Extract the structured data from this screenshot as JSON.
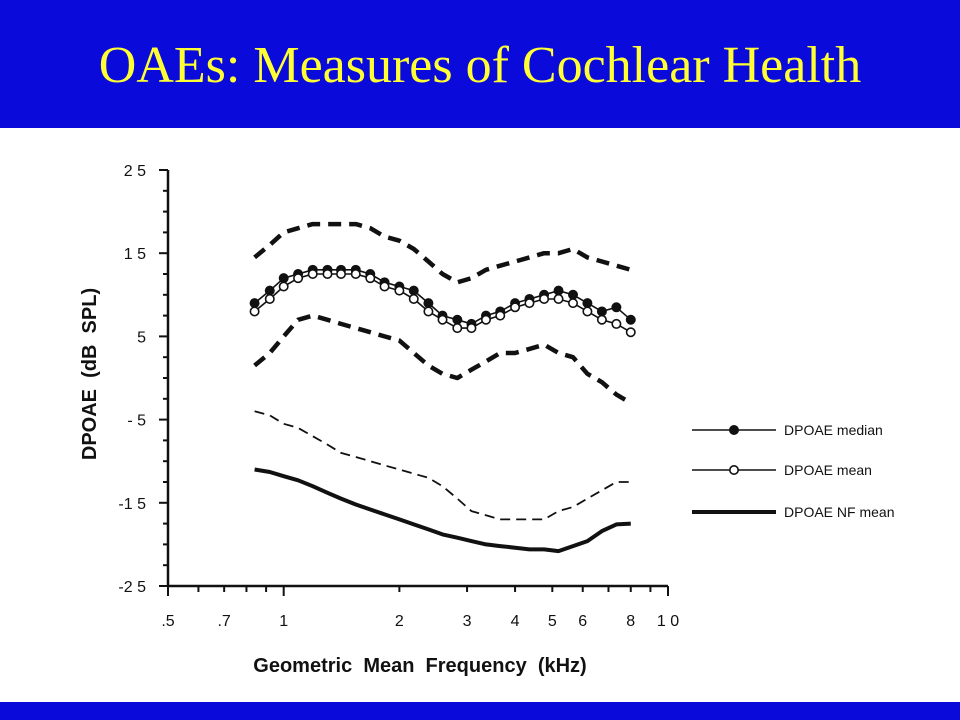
{
  "slide": {
    "title": "OAEs: Measures of Cochlear Health",
    "header_color": "#0a0adb",
    "title_color": "#ffff33"
  },
  "chart_data": {
    "type": "line",
    "title": "",
    "xlabel": "Geometric  Mean  Frequency  (kHz)",
    "ylabel": "DPOAE  (dB  SPL)",
    "x_scale": "log",
    "xlim": [
      0.5,
      10
    ],
    "ylim": [
      -25,
      25
    ],
    "grid": false,
    "legend_position": "right",
    "x_ticks": [
      {
        "value": 0.5,
        "label": ".5"
      },
      {
        "value": 0.7,
        "label": ".7"
      },
      {
        "value": 1,
        "label": "1"
      },
      {
        "value": 2,
        "label": "2"
      },
      {
        "value": 3,
        "label": "3"
      },
      {
        "value": 4,
        "label": "4"
      },
      {
        "value": 5,
        "label": "5"
      },
      {
        "value": 6,
        "label": "6"
      },
      {
        "value": 8,
        "label": "8"
      },
      {
        "value": 10,
        "label": "1 0"
      }
    ],
    "y_ticks": [
      {
        "value": 25,
        "label": "2 5"
      },
      {
        "value": 15,
        "label": "1 5"
      },
      {
        "value": 5,
        "label": "5"
      },
      {
        "value": -5,
        "label": "- 5"
      },
      {
        "value": -15,
        "label": "-1 5"
      },
      {
        "value": -25,
        "label": "-2 5"
      }
    ],
    "x": [
      0.84,
      0.92,
      1.0,
      1.09,
      1.19,
      1.3,
      1.41,
      1.54,
      1.68,
      1.83,
      2.0,
      2.18,
      2.38,
      2.59,
      2.83,
      3.08,
      3.36,
      3.66,
      4.0,
      4.36,
      4.76,
      5.19,
      5.66,
      6.17,
      6.73,
      7.34,
      8.0
    ],
    "series": [
      {
        "name": "DPOAE median",
        "style": "solid-filled-circles",
        "values": [
          9.0,
          10.5,
          12.0,
          12.5,
          13.0,
          13.0,
          13.0,
          13.0,
          12.5,
          11.5,
          11.0,
          10.5,
          9.0,
          7.5,
          7.0,
          6.5,
          7.5,
          8.0,
          9.0,
          9.5,
          10.0,
          10.5,
          10.0,
          9.0,
          8.0,
          8.5,
          7.0
        ]
      },
      {
        "name": "DPOAE mean",
        "style": "solid-open-circles",
        "values": [
          8.0,
          9.5,
          11.0,
          12.0,
          12.5,
          12.5,
          12.5,
          12.5,
          12.0,
          11.0,
          10.5,
          9.5,
          8.0,
          7.0,
          6.0,
          6.0,
          7.0,
          7.5,
          8.5,
          9.0,
          9.5,
          9.5,
          9.0,
          8.0,
          7.0,
          6.5,
          5.5
        ]
      },
      {
        "name": "",
        "style": "heavy-dashed",
        "values": [
          14.5,
          16.0,
          17.5,
          18.0,
          18.5,
          18.5,
          18.5,
          18.5,
          18.0,
          17.0,
          16.5,
          15.5,
          14.0,
          12.5,
          11.5,
          12.0,
          13.0,
          13.5,
          14.0,
          14.5,
          15.0,
          15.0,
          15.5,
          14.5,
          14.0,
          13.5,
          13.0
        ]
      },
      {
        "name": "",
        "style": "heavy-dashed",
        "values": [
          1.5,
          3.0,
          5.0,
          7.0,
          7.5,
          7.0,
          6.5,
          6.0,
          5.5,
          5.0,
          4.5,
          3.0,
          1.5,
          0.5,
          0.0,
          1.0,
          2.0,
          3.0,
          3.0,
          3.5,
          4.0,
          3.0,
          2.5,
          0.5,
          -0.5,
          -2.0,
          -3.0
        ]
      },
      {
        "name": "",
        "style": "thin-dashed",
        "values": [
          -4.0,
          -4.5,
          -5.5,
          -6.0,
          -7.0,
          -8.0,
          -9.0,
          -9.5,
          -10.0,
          -10.5,
          -11.0,
          -11.5,
          -12.0,
          -13.0,
          -14.5,
          -16.0,
          -16.5,
          -17.0,
          -17.0,
          -17.0,
          -17.0,
          -16.0,
          -15.5,
          -14.5,
          -13.5,
          -12.5,
          -12.5
        ]
      },
      {
        "name": "DPOAE NF mean",
        "style": "heavy-solid",
        "values": [
          -11.0,
          -11.3,
          -11.8,
          -12.3,
          -13.0,
          -13.8,
          -14.5,
          -15.2,
          -15.8,
          -16.4,
          -17.0,
          -17.6,
          -18.2,
          -18.8,
          -19.2,
          -19.6,
          -20.0,
          -20.2,
          -20.4,
          -20.6,
          -20.6,
          -20.8,
          -20.2,
          -19.6,
          -18.4,
          -17.6,
          -17.5
        ]
      }
    ],
    "legend": [
      {
        "label": "DPOAE median",
        "style": "solid-filled-circles"
      },
      {
        "label": "DPOAE mean",
        "style": "solid-open-circles"
      },
      {
        "label": "DPOAE NF mean",
        "style": "heavy-solid"
      }
    ]
  }
}
